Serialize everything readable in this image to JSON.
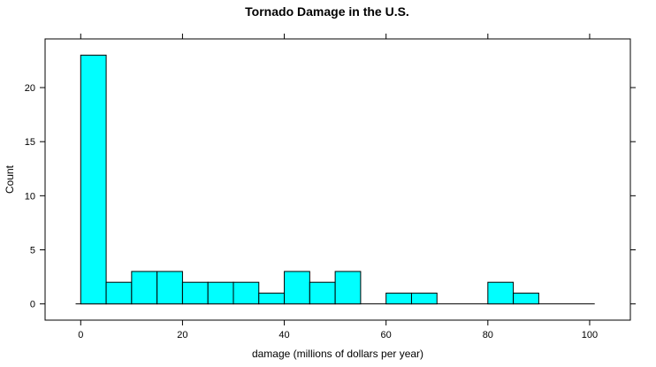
{
  "chart_data": {
    "type": "bar",
    "title": "Tornado Damage in the U.S.",
    "xlabel": "damage (millions of dollars per year)",
    "ylabel": "Count",
    "bin_edges": [
      0,
      5,
      10,
      15,
      20,
      25,
      30,
      35,
      40,
      45,
      50,
      55,
      60,
      65,
      70,
      75,
      80,
      85,
      90,
      95,
      100
    ],
    "values": [
      23,
      2,
      3,
      3,
      2,
      2,
      2,
      1,
      3,
      2,
      3,
      0,
      1,
      1,
      0,
      0,
      2,
      1,
      0,
      0
    ],
    "xlim": [
      -7,
      108
    ],
    "ylim": [
      -1.5,
      24.5
    ],
    "x_ticks": [
      0,
      20,
      40,
      60,
      80,
      100
    ],
    "y_ticks": [
      0,
      5,
      10,
      15,
      20
    ],
    "bar_color": "#00ffff",
    "baseline_segment": [
      -1,
      101
    ],
    "grid": false,
    "legend": "none"
  }
}
